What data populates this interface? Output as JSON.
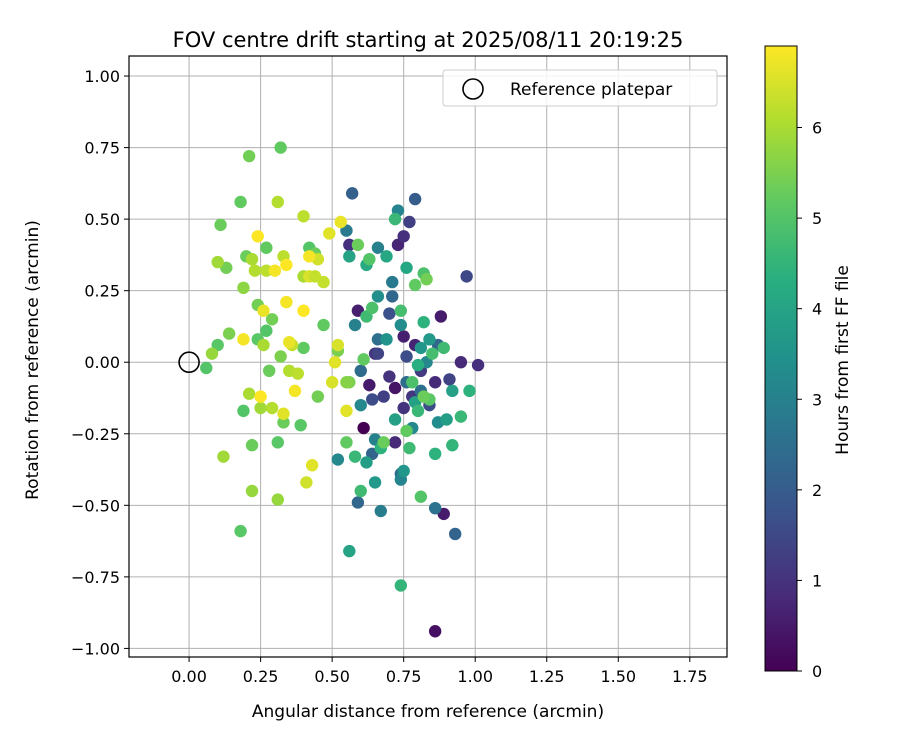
{
  "chart_data": {
    "type": "scatter",
    "title": "FOV centre drift starting at 2025/08/11 20:19:25",
    "xlabel": "Angular distance from reference (arcmin)",
    "ylabel": "Rotation from reference (arcmin)",
    "xlim": [
      -0.21,
      1.88
    ],
    "ylim": [
      -1.03,
      1.07
    ],
    "xticks": [
      0.0,
      0.25,
      0.5,
      0.75,
      1.0,
      1.25,
      1.5,
      1.75
    ],
    "xtick_labels": [
      "0.00",
      "0.25",
      "0.50",
      "0.75",
      "1.00",
      "1.25",
      "1.50",
      "1.75"
    ],
    "yticks": [
      -1.0,
      -0.75,
      -0.5,
      -0.25,
      0.0,
      0.25,
      0.5,
      0.75,
      1.0
    ],
    "ytick_labels": [
      "−1.00",
      "−0.75",
      "−0.50",
      "−0.25",
      "0.00",
      "0.25",
      "0.50",
      "0.75",
      "1.00"
    ],
    "grid": true,
    "legend": {
      "placement": "top-right",
      "entries": [
        "Reference platepar"
      ]
    },
    "reference_point": {
      "x": 0.0,
      "y": 0.0,
      "label": "Reference platepar"
    },
    "colorbar": {
      "label": "Hours from first FF file",
      "range": [
        0,
        6.9
      ],
      "ticks": [
        0,
        1,
        2,
        3,
        4,
        5,
        6
      ],
      "tick_labels": [
        "0",
        "1",
        "2",
        "3",
        "4",
        "5",
        "6"
      ],
      "colormap": "viridis"
    },
    "points": [
      [
        0.61,
        -0.23,
        0.0
      ],
      [
        0.86,
        -0.94,
        0.3
      ],
      [
        0.89,
        -0.53,
        0.5
      ],
      [
        0.59,
        0.18,
        0.6
      ],
      [
        0.63,
        -0.08,
        0.5
      ],
      [
        0.72,
        -0.09,
        0.4
      ],
      [
        0.75,
        0.09,
        0.6
      ],
      [
        0.79,
        0.06,
        0.7
      ],
      [
        0.73,
        0.41,
        0.7
      ],
      [
        0.75,
        0.44,
        0.9
      ],
      [
        0.88,
        0.16,
        0.5
      ],
      [
        0.95,
        0.0,
        0.8
      ],
      [
        1.01,
        -0.01,
        0.9
      ],
      [
        0.86,
        -0.07,
        0.8
      ],
      [
        0.56,
        0.41,
        0.9
      ],
      [
        0.65,
        0.03,
        1.0
      ],
      [
        0.7,
        -0.05,
        1.0
      ],
      [
        0.75,
        -0.16,
        1.0
      ],
      [
        0.78,
        -0.12,
        1.1
      ],
      [
        0.81,
        -0.03,
        1.2
      ],
      [
        0.68,
        -0.12,
        1.3
      ],
      [
        0.72,
        -0.28,
        0.8
      ],
      [
        0.77,
        0.49,
        1.3
      ],
      [
        0.91,
        -0.06,
        1.4
      ],
      [
        0.97,
        0.3,
        1.5
      ],
      [
        0.66,
        0.03,
        1.4
      ],
      [
        0.64,
        -0.13,
        1.6
      ],
      [
        0.7,
        0.17,
        1.7
      ],
      [
        0.76,
        0.02,
        1.6
      ],
      [
        0.84,
        -0.15,
        1.6
      ],
      [
        0.57,
        0.59,
        2.1
      ],
      [
        0.79,
        0.57,
        2.0
      ],
      [
        0.93,
        -0.6,
        2.2
      ],
      [
        0.59,
        -0.49,
        2.3
      ],
      [
        0.64,
        -0.32,
        2.2
      ],
      [
        0.74,
        -0.39,
        2.4
      ],
      [
        0.86,
        -0.51,
        2.6
      ],
      [
        0.6,
        -0.03,
        2.4
      ],
      [
        0.66,
        0.08,
        2.5
      ],
      [
        0.71,
        0.23,
        2.3
      ],
      [
        0.76,
        -0.07,
        2.4
      ],
      [
        0.81,
        -0.1,
        2.5
      ],
      [
        0.87,
        0.06,
        2.3
      ],
      [
        0.55,
        0.46,
        2.8
      ],
      [
        0.66,
        0.4,
        3.0
      ],
      [
        0.71,
        0.28,
        2.8
      ],
      [
        0.73,
        0.53,
        3.1
      ],
      [
        0.58,
        0.13,
        3.0
      ],
      [
        0.6,
        -0.15,
        3.2
      ],
      [
        0.65,
        -0.27,
        3.0
      ],
      [
        0.67,
        -0.52,
        2.9
      ],
      [
        0.74,
        -0.41,
        3.1
      ],
      [
        0.78,
        -0.23,
        3.2
      ],
      [
        0.83,
        0.0,
        3.2
      ],
      [
        0.87,
        -0.21,
        3.3
      ],
      [
        0.52,
        -0.34,
        3.2
      ],
      [
        0.66,
        0.23,
        3.4
      ],
      [
        0.69,
        0.08,
        3.5
      ],
      [
        0.74,
        0.13,
        3.3
      ],
      [
        0.81,
        0.05,
        3.6
      ],
      [
        0.84,
        0.08,
        3.7
      ],
      [
        0.62,
        -0.35,
        3.8
      ],
      [
        0.65,
        -0.42,
        3.7
      ],
      [
        0.72,
        -0.2,
        3.9
      ],
      [
        0.75,
        -0.38,
        3.6
      ],
      [
        0.79,
        -0.14,
        3.9
      ],
      [
        0.9,
        -0.2,
        3.8
      ],
      [
        0.92,
        -0.1,
        3.9
      ],
      [
        0.56,
        -0.66,
        4.0
      ],
      [
        0.56,
        0.37,
        4.0
      ],
      [
        0.62,
        0.34,
        4.2
      ],
      [
        0.69,
        0.37,
        4.1
      ],
      [
        0.76,
        0.33,
        4.1
      ],
      [
        0.8,
        -0.01,
        4.3
      ],
      [
        0.82,
        0.14,
        4.4
      ],
      [
        0.86,
        -0.32,
        4.4
      ],
      [
        0.74,
        -0.78,
        4.5
      ],
      [
        0.58,
        -0.33,
        4.6
      ],
      [
        0.6,
        -0.45,
        4.7
      ],
      [
        0.67,
        -0.3,
        4.4
      ],
      [
        0.77,
        -0.3,
        4.7
      ],
      [
        0.8,
        -0.17,
        4.6
      ],
      [
        0.85,
        0.03,
        4.8
      ],
      [
        0.92,
        -0.29,
        4.5
      ],
      [
        0.95,
        -0.19,
        4.6
      ],
      [
        0.98,
        -0.1,
        4.4
      ],
      [
        0.62,
        0.16,
        4.7
      ],
      [
        0.64,
        0.19,
        4.9
      ],
      [
        0.72,
        0.5,
        4.6
      ],
      [
        0.74,
        0.18,
        4.8
      ],
      [
        0.82,
        0.31,
        4.9
      ],
      [
        0.89,
        0.05,
        4.7
      ],
      [
        0.78,
        -0.07,
        4.9
      ],
      [
        0.81,
        -0.47,
        5.0
      ],
      [
        0.84,
        -0.13,
        5.1
      ],
      [
        0.61,
        0.01,
        5.2
      ],
      [
        0.68,
        -0.28,
        5.3
      ],
      [
        0.56,
        -0.07,
        5.5
      ],
      [
        0.59,
        0.41,
        5.3
      ],
      [
        0.63,
        0.36,
        5.0
      ],
      [
        0.79,
        0.27,
        5.2
      ],
      [
        0.83,
        0.29,
        5.4
      ],
      [
        0.55,
        -0.28,
        5.2
      ],
      [
        0.76,
        -0.24,
        5.2
      ],
      [
        0.82,
        -0.12,
        5.3
      ],
      [
        0.06,
        -0.02,
        5.0
      ],
      [
        0.1,
        0.06,
        5.1
      ],
      [
        0.11,
        0.48,
        5.3
      ],
      [
        0.13,
        0.33,
        5.4
      ],
      [
        0.14,
        0.1,
        5.5
      ],
      [
        0.18,
        0.56,
        5.2
      ],
      [
        0.18,
        -0.59,
        5.1
      ],
      [
        0.19,
        -0.17,
        5.0
      ],
      [
        0.2,
        0.37,
        5.3
      ],
      [
        0.21,
        0.72,
        5.4
      ],
      [
        0.22,
        -0.29,
        5.3
      ],
      [
        0.24,
        0.2,
        5.4
      ],
      [
        0.24,
        0.08,
        5.1
      ],
      [
        0.27,
        0.11,
        5.0
      ],
      [
        0.27,
        0.4,
        5.2
      ],
      [
        0.28,
        -0.03,
        5.3
      ],
      [
        0.29,
        0.15,
        5.4
      ],
      [
        0.31,
        -0.28,
        5.1
      ],
      [
        0.32,
        0.75,
        5.2
      ],
      [
        0.32,
        0.02,
        5.5
      ],
      [
        0.33,
        -0.21,
        5.3
      ],
      [
        0.39,
        -0.22,
        5.1
      ],
      [
        0.4,
        0.05,
        5.2
      ],
      [
        0.42,
        0.4,
        5.0
      ],
      [
        0.44,
        0.38,
        5.3
      ],
      [
        0.45,
        -0.12,
        5.4
      ],
      [
        0.47,
        0.13,
        5.2
      ],
      [
        0.52,
        0.04,
        5.5
      ],
      [
        0.55,
        -0.07,
        5.6
      ],
      [
        0.08,
        0.03,
        5.8
      ],
      [
        0.1,
        0.35,
        5.9
      ],
      [
        0.12,
        -0.33,
        5.9
      ],
      [
        0.19,
        0.26,
        5.7
      ],
      [
        0.21,
        -0.11,
        6.0
      ],
      [
        0.22,
        0.36,
        6.0
      ],
      [
        0.22,
        -0.45,
        5.8
      ],
      [
        0.23,
        0.32,
        6.1
      ],
      [
        0.25,
        -0.16,
        5.9
      ],
      [
        0.26,
        0.06,
        6.0
      ],
      [
        0.27,
        0.32,
        6.2
      ],
      [
        0.29,
        -0.16,
        6.1
      ],
      [
        0.31,
        -0.48,
        5.8
      ],
      [
        0.31,
        0.56,
        6.1
      ],
      [
        0.33,
        0.37,
        6.2
      ],
      [
        0.35,
        -0.03,
        6.1
      ],
      [
        0.36,
        0.06,
        6.3
      ],
      [
        0.38,
        -0.04,
        6.2
      ],
      [
        0.4,
        0.3,
        6.0
      ],
      [
        0.4,
        0.51,
        6.2
      ],
      [
        0.41,
        -0.42,
        6.4
      ],
      [
        0.42,
        0.3,
        6.5
      ],
      [
        0.43,
        -0.36,
        6.6
      ],
      [
        0.44,
        0.3,
        6.3
      ],
      [
        0.45,
        0.36,
        6.4
      ],
      [
        0.47,
        0.28,
        6.3
      ],
      [
        0.49,
        0.45,
        6.6
      ],
      [
        0.5,
        -0.07,
        6.5
      ],
      [
        0.51,
        0.0,
        6.6
      ],
      [
        0.52,
        0.06,
        6.5
      ],
      [
        0.53,
        0.49,
        6.7
      ],
      [
        0.55,
        -0.17,
        6.6
      ],
      [
        0.19,
        0.08,
        6.8
      ],
      [
        0.24,
        0.44,
        6.9
      ],
      [
        0.25,
        -0.12,
        6.9
      ],
      [
        0.26,
        0.18,
        6.7
      ],
      [
        0.3,
        0.32,
        6.8
      ],
      [
        0.34,
        0.34,
        6.9
      ],
      [
        0.34,
        0.21,
        6.8
      ],
      [
        0.35,
        0.07,
        6.7
      ],
      [
        0.37,
        -0.1,
        6.8
      ],
      [
        0.4,
        0.18,
        6.9
      ],
      [
        0.42,
        0.37,
        6.8
      ],
      [
        0.33,
        -0.18,
        6.6
      ]
    ]
  }
}
